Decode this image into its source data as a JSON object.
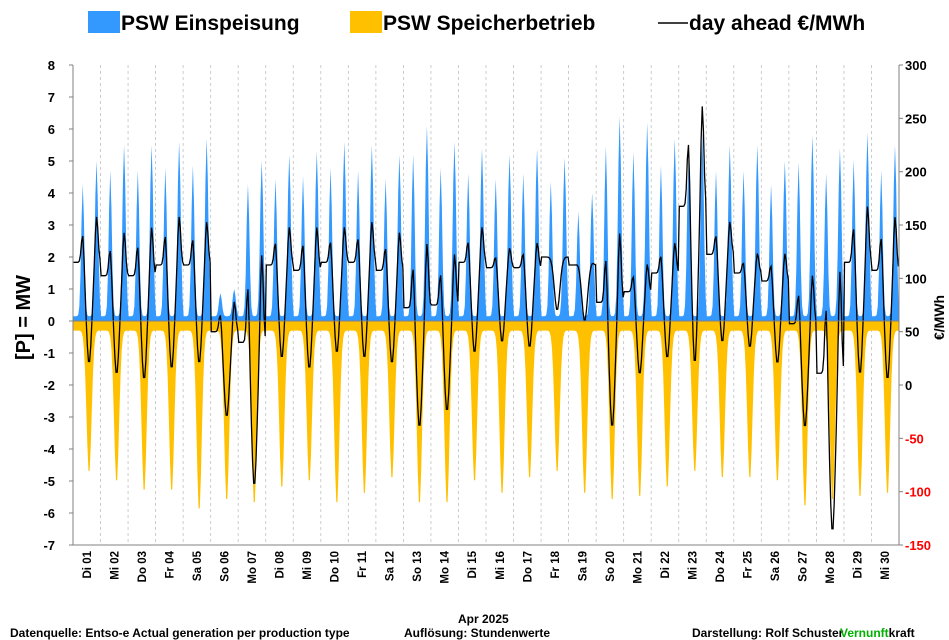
{
  "chart_data": {
    "type": "area",
    "title": "",
    "legend": {
      "placement": "top",
      "entries": [
        {
          "label": "PSW Einspeisung",
          "color": "#3399ff",
          "kind": "area"
        },
        {
          "label": "PSW Speicherbetrieb",
          "color": "#ffc000",
          "kind": "area"
        },
        {
          "label": "day ahead €/MWh",
          "color": "#000000",
          "kind": "line"
        }
      ]
    },
    "ylabel": "[P]  = MW",
    "y2label": "€/MWh",
    "xlabel": "Apr 2025",
    "ylim": [
      -7,
      8
    ],
    "y_ticks": [
      "8",
      "7",
      "6",
      "5",
      "4",
      "3",
      "2",
      "1",
      "0",
      "-1",
      "-2",
      "-3",
      "-4",
      "-5",
      "-6",
      "-7"
    ],
    "y2lim": [
      -150,
      300
    ],
    "y2_ticks": [
      {
        "label": "300",
        "color": "#000000"
      },
      {
        "label": "250",
        "color": "#000000"
      },
      {
        "label": "200",
        "color": "#000000"
      },
      {
        "label": "150",
        "color": "#000000"
      },
      {
        "label": "100",
        "color": "#000000"
      },
      {
        "label": "50",
        "color": "#000000"
      },
      {
        "label": "0",
        "color": "#000000"
      },
      {
        "label": "-50",
        "color": "#ff0000"
      },
      {
        "label": "-100",
        "color": "#ff0000"
      },
      {
        "label": "-150",
        "color": "#ff0000"
      }
    ],
    "grid": "vertical-dashed",
    "x_labels": [
      "Di 01",
      "Mi 02",
      "Do 03",
      "Fr 04",
      "Sa 05",
      "So 06",
      "Mo 07",
      "Di 08",
      "Mi 09",
      "Do 10",
      "Fr 11",
      "Sa 12",
      "So 13",
      "Mo 14",
      "Di 15",
      "Mi 16",
      "Do 17",
      "Fr 18",
      "Sa 19",
      "So 20",
      "Mo 21",
      "Di 22",
      "Mi 23",
      "Do 24",
      "Fr 25",
      "Sa 26",
      "So 27",
      "Mo 28",
      "Di 29",
      "Mi 30"
    ],
    "daily": [
      {
        "day": "Di 01",
        "gen_peak": 5.0,
        "store_min": -4.8,
        "price_peak": 160,
        "price_min": 20
      },
      {
        "day": "Mi 02",
        "gen_peak": 5.5,
        "store_min": -5.1,
        "price_peak": 145,
        "price_min": 10
      },
      {
        "day": "Do 03",
        "gen_peak": 5.5,
        "store_min": -5.4,
        "price_peak": 150,
        "price_min": 5
      },
      {
        "day": "Fr 04",
        "gen_peak": 5.6,
        "store_min": -5.4,
        "price_peak": 160,
        "price_min": 15
      },
      {
        "day": "Sa 05",
        "gen_peak": 5.7,
        "store_min": -6.0,
        "price_peak": 155,
        "price_min": 20
      },
      {
        "day": "So 06",
        "gen_peak": 1.0,
        "store_min": -5.7,
        "price_peak": 80,
        "price_min": -30
      },
      {
        "day": "Mo 07",
        "gen_peak": 5.0,
        "store_min": -5.8,
        "price_peak": 125,
        "price_min": -95
      },
      {
        "day": "Di 08",
        "gen_peak": 5.2,
        "store_min": -5.3,
        "price_peak": 150,
        "price_min": 25
      },
      {
        "day": "Mi 09",
        "gen_peak": 5.3,
        "store_min": -5.1,
        "price_peak": 150,
        "price_min": 15
      },
      {
        "day": "Do 10",
        "gen_peak": 5.6,
        "store_min": -5.8,
        "price_peak": 150,
        "price_min": 30
      },
      {
        "day": "Fr 11",
        "gen_peak": 5.5,
        "store_min": -5.5,
        "price_peak": 155,
        "price_min": 25
      },
      {
        "day": "Sa 12",
        "gen_peak": 5.2,
        "store_min": -5.0,
        "price_peak": 145,
        "price_min": 20
      },
      {
        "day": "So 13",
        "gen_peak": 6.1,
        "store_min": -5.8,
        "price_peak": 135,
        "price_min": -40
      },
      {
        "day": "Mo 14",
        "gen_peak": 5.6,
        "store_min": -5.8,
        "price_peak": 125,
        "price_min": -25
      },
      {
        "day": "Di 15",
        "gen_peak": 5.4,
        "store_min": -5.1,
        "price_peak": 150,
        "price_min": 30
      },
      {
        "day": "Mi 16",
        "gen_peak": 5.2,
        "store_min": -5.5,
        "price_peak": 130,
        "price_min": 40
      },
      {
        "day": "Do 17",
        "gen_peak": 5.4,
        "store_min": -5.0,
        "price_peak": 135,
        "price_min": 35
      },
      {
        "day": "Fr 18",
        "gen_peak": 5.1,
        "store_min": -4.8,
        "price_peak": 120,
        "price_min": 70
      },
      {
        "day": "Sa 19",
        "gen_peak": 4.0,
        "store_min": -5.5,
        "price_peak": 115,
        "price_min": 60
      },
      {
        "day": "So 20",
        "gen_peak": 6.4,
        "store_min": -5.7,
        "price_peak": 145,
        "price_min": -40
      },
      {
        "day": "Mo 21",
        "gen_peak": 6.2,
        "store_min": -5.6,
        "price_peak": 115,
        "price_min": 10
      },
      {
        "day": "Di 22",
        "gen_peak": 5.7,
        "store_min": -5.3,
        "price_peak": 135,
        "price_min": 25
      },
      {
        "day": "Mi 23",
        "gen_peak": 5.9,
        "store_min": -4.8,
        "price_peak": 265,
        "price_min": 20
      },
      {
        "day": "Do 24",
        "gen_peak": 5.5,
        "store_min": -5.0,
        "price_peak": 155,
        "price_min": 40
      },
      {
        "day": "Fr 25",
        "gen_peak": 5.5,
        "store_min": -5.0,
        "price_peak": 125,
        "price_min": 35
      },
      {
        "day": "Sa 26",
        "gen_peak": 5.0,
        "store_min": -5.1,
        "price_peak": 125,
        "price_min": 20
      },
      {
        "day": "So 27",
        "gen_peak": 5.8,
        "store_min": -5.9,
        "price_peak": 105,
        "price_min": -40
      },
      {
        "day": "Mo 28",
        "gen_peak": 5.4,
        "store_min": -5.7,
        "price_peak": 110,
        "price_min": -138
      },
      {
        "day": "Di 29",
        "gen_peak": 5.9,
        "store_min": -5.6,
        "price_peak": 170,
        "price_min": 10
      },
      {
        "day": "Mi 30",
        "gen_peak": 5.5,
        "store_min": -5.5,
        "price_peak": 160,
        "price_min": 5
      }
    ]
  },
  "footer": {
    "source": "Datenquelle: Entso-e  Actual generation per production type",
    "resolution": "Auflösung:  Stundenwerte",
    "author": "Darstellung:  Rolf Schuster",
    "brand_green": "Vernunft",
    "brand_black": "kraft",
    "brand_color": "#00b000"
  }
}
